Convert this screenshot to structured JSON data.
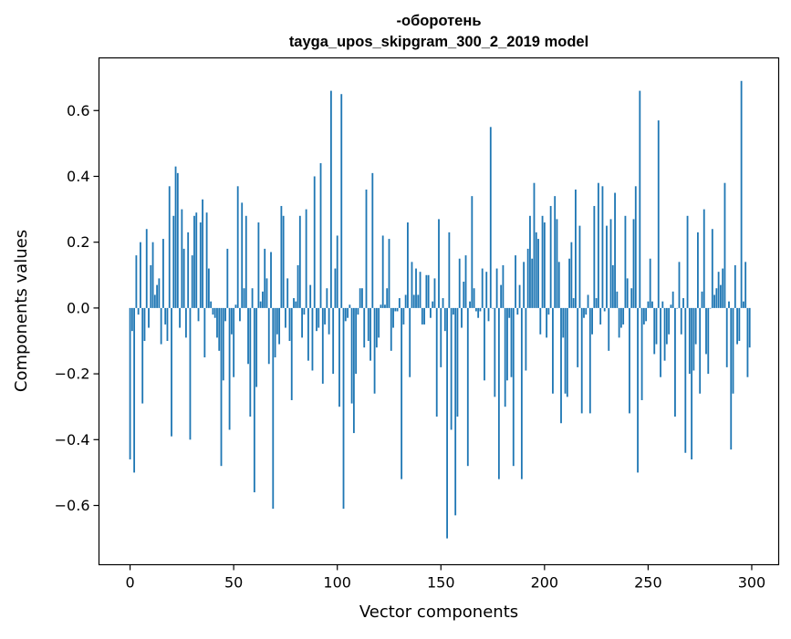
{
  "chart_data": {
    "type": "bar",
    "title": "-оборотень",
    "subtitle": "tayga_upos_skipgram_300_2_2019 model",
    "xlabel": "Vector components",
    "ylabel": "Components values",
    "xlim": [
      -15,
      313
    ],
    "ylim": [
      -0.78,
      0.76
    ],
    "x_ticks": [
      0,
      50,
      100,
      150,
      200,
      250,
      300
    ],
    "y_ticks": [
      -0.6,
      -0.4,
      -0.2,
      0.0,
      0.2,
      0.4,
      0.6
    ],
    "x_tick_labels": [
      "0",
      "50",
      "100",
      "150",
      "200",
      "250",
      "300"
    ],
    "y_tick_labels": [
      "−0.6",
      "−0.4",
      "−0.2",
      "0.0",
      "0.2",
      "0.4",
      "0.6"
    ],
    "grid": false,
    "bar_color": "#1f77b4",
    "series": [
      {
        "values": [
          -0.46,
          -0.07,
          -0.5,
          0.16,
          -0.02,
          0.2,
          -0.29,
          -0.1,
          0.24,
          -0.06,
          0.13,
          0.2,
          0.04,
          0.07,
          0.09,
          -0.11,
          0.21,
          -0.05,
          -0.1,
          0.37,
          -0.39,
          0.28,
          0.43,
          0.41,
          -0.06,
          0.3,
          0.18,
          -0.09,
          0.23,
          -0.4,
          0.16,
          0.28,
          0.29,
          -0.04,
          0.26,
          0.33,
          -0.15,
          0.29,
          0.12,
          0.02,
          -0.02,
          -0.03,
          -0.09,
          -0.13,
          -0.48,
          -0.22,
          -0.04,
          0.18,
          -0.37,
          -0.08,
          -0.21,
          0.01,
          0.37,
          -0.04,
          0.32,
          0.06,
          0.28,
          -0.17,
          -0.33,
          0.06,
          -0.56,
          -0.24,
          0.26,
          0.02,
          0.05,
          0.18,
          0.09,
          -0.17,
          0.17,
          -0.61,
          -0.15,
          -0.08,
          -0.11,
          0.31,
          0.28,
          -0.06,
          0.09,
          -0.1,
          -0.28,
          0.03,
          0.02,
          0.13,
          0.28,
          -0.09,
          -0.02,
          0.3,
          -0.16,
          0.07,
          -0.19,
          0.4,
          -0.07,
          -0.06,
          0.44,
          -0.23,
          -0.05,
          0.06,
          -0.08,
          0.66,
          -0.2,
          0.12,
          0.22,
          -0.3,
          0.65,
          -0.61,
          -0.04,
          -0.03,
          0.01,
          -0.29,
          -0.38,
          -0.2,
          -0.02,
          0.06,
          0.06,
          -0.12,
          0.36,
          -0.1,
          -0.16,
          0.41,
          -0.26,
          -0.12,
          -0.09,
          0.01,
          0.22,
          0.01,
          0.06,
          0.21,
          -0.13,
          -0.06,
          -0.01,
          -0.01,
          0.03,
          -0.52,
          -0.05,
          0.04,
          0.26,
          -0.21,
          0.14,
          0.04,
          0.12,
          0.04,
          0.11,
          -0.05,
          -0.05,
          0.1,
          0.1,
          -0.03,
          0.02,
          0.09,
          -0.33,
          0.27,
          -0.18,
          0.03,
          -0.07,
          -0.7,
          0.23,
          -0.37,
          -0.02,
          -0.63,
          -0.33,
          0.15,
          -0.06,
          0.08,
          0.16,
          -0.48,
          0.02,
          0.34,
          0.06,
          -0.01,
          -0.03,
          -0.01,
          0.12,
          -0.22,
          0.11,
          -0.04,
          0.55,
          0.0,
          -0.27,
          0.12,
          -0.52,
          0.07,
          0.13,
          -0.3,
          -0.22,
          -0.03,
          -0.21,
          -0.48,
          0.16,
          -0.02,
          0.07,
          -0.52,
          0.14,
          -0.19,
          0.18,
          0.28,
          0.15,
          0.38,
          0.23,
          0.21,
          -0.08,
          0.28,
          0.26,
          -0.09,
          -0.02,
          0.31,
          -0.26,
          0.34,
          0.27,
          0.14,
          -0.35,
          -0.09,
          -0.26,
          -0.27,
          0.15,
          0.2,
          0.03,
          0.36,
          -0.18,
          0.25,
          -0.32,
          -0.03,
          -0.02,
          0.04,
          -0.32,
          -0.08,
          0.31,
          0.03,
          0.38,
          -0.05,
          0.37,
          -0.01,
          0.25,
          -0.13,
          0.27,
          0.13,
          0.35,
          0.05,
          -0.09,
          -0.06,
          -0.05,
          0.28,
          0.09,
          -0.32,
          0.06,
          0.27,
          0.37,
          -0.5,
          0.66,
          -0.28,
          -0.05,
          -0.04,
          0.02,
          0.15,
          0.02,
          -0.14,
          -0.11,
          0.57,
          -0.21,
          0.02,
          -0.16,
          -0.11,
          -0.08,
          0.01,
          0.05,
          -0.33,
          0.0,
          0.14,
          -0.08,
          0.03,
          -0.44,
          0.28,
          -0.2,
          -0.46,
          -0.19,
          -0.11,
          0.23,
          -0.26,
          0.05,
          0.3,
          -0.14,
          -0.2,
          0.0,
          0.24,
          0.04,
          0.06,
          0.11,
          0.07,
          0.12,
          0.38,
          -0.18,
          0.02,
          -0.43,
          -0.26,
          0.13,
          -0.11,
          -0.1,
          0.69,
          0.02,
          0.14,
          -0.21,
          -0.12
        ]
      }
    ]
  }
}
